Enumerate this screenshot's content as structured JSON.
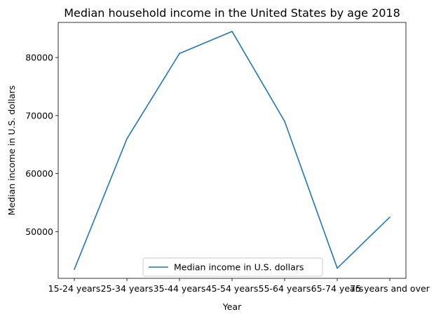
{
  "chart_data": {
    "type": "line",
    "title": "Median household income in the United States by age 2018",
    "xlabel": "Year",
    "ylabel": "Median income in U.S. dollars",
    "categories": [
      "15-24 years",
      "25-34 years",
      "35-44 years",
      "45-54 years",
      "55-64 years",
      "65-74 years",
      "75 years and over"
    ],
    "series": [
      {
        "name": "Median income in U.S. dollars",
        "values": [
          43500,
          66000,
          80700,
          84500,
          69000,
          43700,
          52500
        ],
        "color": "#1f77b4"
      }
    ],
    "ylim": [
      41950,
      86050
    ],
    "yticks": [
      50000,
      60000,
      70000,
      80000
    ],
    "ytick_labels": [
      "50000",
      "60000",
      "70000",
      "80000"
    ],
    "grid": false,
    "legend_position": "lower-center"
  }
}
